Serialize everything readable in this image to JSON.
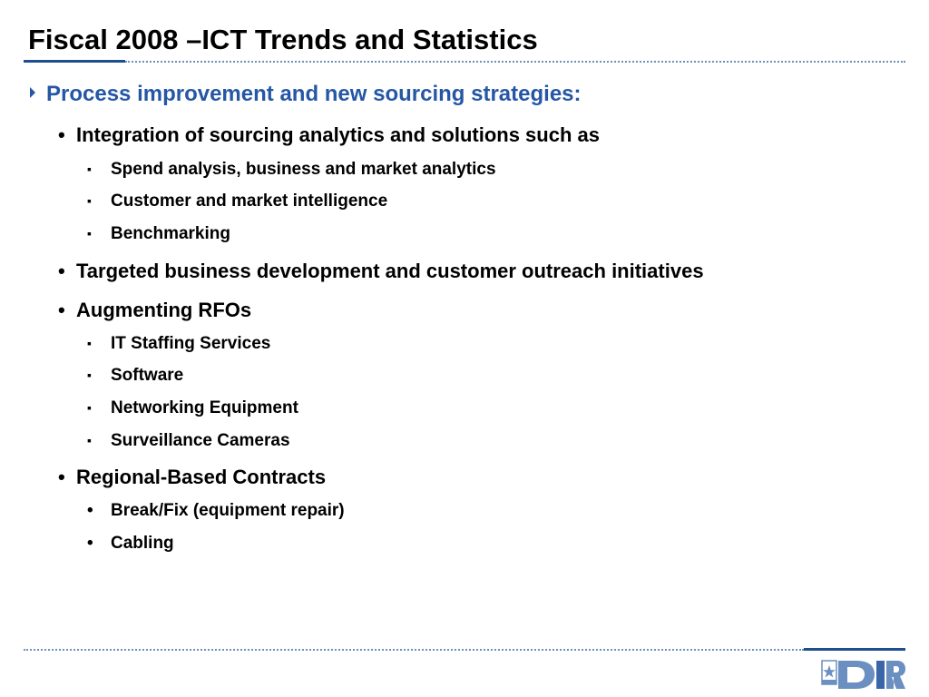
{
  "slide": {
    "title": "Fiscal 2008 –ICT Trends and Statistics",
    "heading": "Process improvement and new sourcing strategies:",
    "items": [
      {
        "text": "Integration of sourcing analytics and solutions such as",
        "subitems": [
          "Spend analysis, business and market analytics",
          "Customer and market intelligence",
          "Benchmarking"
        ]
      },
      {
        "text": "Targeted business development and customer outreach initiatives",
        "subitems": []
      },
      {
        "text": "Augmenting RFOs",
        "subitems": [
          "IT Staffing Services",
          "Software",
          "Networking Equipment",
          "Surveillance Cameras"
        ]
      },
      {
        "text": "Regional-Based Contracts",
        "subitems": [
          "Break/Fix (equipment repair)",
          "Cabling"
        ]
      }
    ]
  },
  "logo": {
    "text": "DIR"
  },
  "colors": {
    "accent_blue": "#2557a5",
    "rule_blue": "#1f4e8c",
    "logo_blue": "#6b8fc0"
  }
}
